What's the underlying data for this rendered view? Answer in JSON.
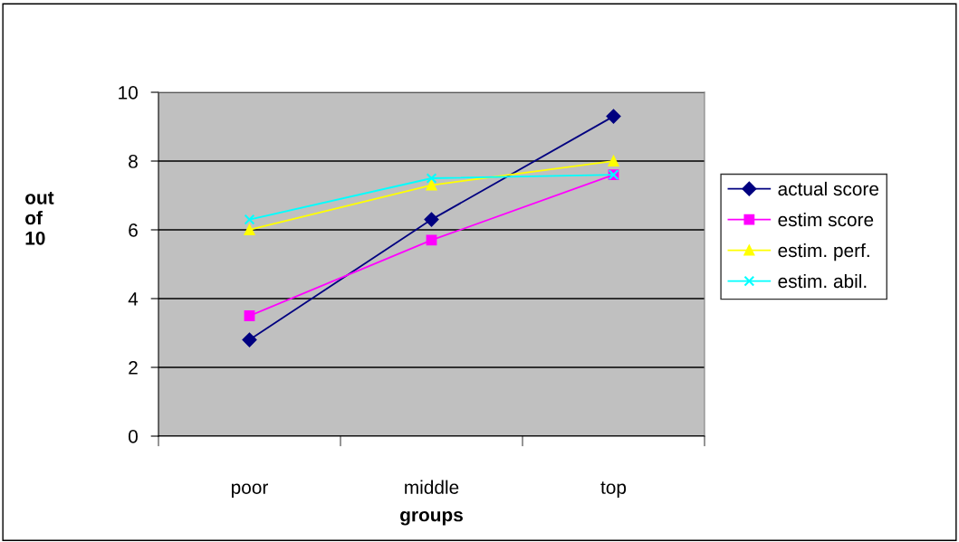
{
  "chart_data": {
    "type": "line",
    "xlabel": "groups",
    "ylabel": "out\nof\n10",
    "categories": [
      "poor",
      "middle",
      "top"
    ],
    "series": [
      {
        "name": "actual score",
        "color": "#000080",
        "marker": "diamond",
        "values": [
          2.8,
          6.3,
          9.3
        ]
      },
      {
        "name": "estim score",
        "color": "#ff00ff",
        "marker": "square",
        "values": [
          3.5,
          5.7,
          7.6
        ]
      },
      {
        "name": "estim. perf.",
        "color": "#ffff00",
        "marker": "triangle",
        "values": [
          6.0,
          7.3,
          8.0
        ]
      },
      {
        "name": "estim. abil.",
        "color": "#00ffff",
        "marker": "cross",
        "values": [
          6.3,
          7.5,
          7.6
        ]
      }
    ],
    "ylim": [
      0,
      10
    ],
    "yticks": [
      0,
      2,
      4,
      6,
      8,
      10
    ],
    "grid": "y",
    "legend": "right",
    "line_style": "solid"
  }
}
